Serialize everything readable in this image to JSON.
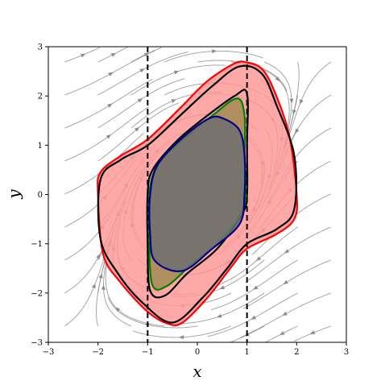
{
  "chart_data": {
    "type": "line",
    "title": "",
    "xlabel": "x",
    "ylabel": "y",
    "xlim": [
      -3,
      3
    ],
    "ylim": [
      -3,
      3
    ],
    "x_ticks": [
      "−3",
      "−2",
      "−1",
      "0",
      "1",
      "2",
      "3"
    ],
    "y_ticks": [
      "3",
      "2",
      "1",
      "0",
      "−1",
      "−2",
      "−3"
    ],
    "grid": false,
    "legend": "none",
    "vector_field": {
      "description": "streamlines",
      "color": "#8c8c8c"
    },
    "vertical_lines": [
      {
        "x": -1,
        "style": "dashed",
        "color": "#000000"
      },
      {
        "x": 1,
        "style": "dashed",
        "color": "#000000"
      }
    ],
    "series": [
      {
        "kind": "filled-curve",
        "fill": "#ff9999",
        "stroke": "#ff0000",
        "points": [
          [
            1.0,
            2.68
          ],
          [
            0.75,
            2.66
          ],
          [
            0.2,
            2.3
          ],
          [
            -0.35,
            1.75
          ],
          [
            -1.0,
            1.12
          ],
          [
            -1.55,
            0.78
          ],
          [
            -1.95,
            0.45
          ],
          [
            -2.0,
            0.0
          ],
          [
            -1.9,
            -1.2
          ],
          [
            -1.55,
            -1.78
          ],
          [
            -1.0,
            -2.38
          ],
          [
            -0.6,
            -2.62
          ],
          [
            -0.3,
            -2.6
          ],
          [
            0.2,
            -2.1
          ],
          [
            0.7,
            -1.45
          ],
          [
            1.0,
            -1.1
          ],
          [
            1.6,
            -0.8
          ],
          [
            1.95,
            -0.5
          ],
          [
            2.0,
            0.0
          ],
          [
            1.85,
            1.2
          ],
          [
            1.55,
            2.1
          ],
          [
            1.3,
            2.55
          ]
        ]
      },
      {
        "kind": "curve",
        "stroke": "#000000",
        "points": [
          [
            0.85,
            2.6
          ],
          [
            0.3,
            2.2
          ],
          [
            -0.35,
            1.6
          ],
          [
            -1.0,
            1.0
          ],
          [
            -1.55,
            0.7
          ],
          [
            -1.95,
            0.3
          ],
          [
            -1.95,
            -0.9
          ],
          [
            -1.6,
            -1.6
          ],
          [
            -1.1,
            -2.2
          ],
          [
            -0.5,
            -2.6
          ],
          [
            0.1,
            -2.1
          ],
          [
            0.6,
            -1.5
          ],
          [
            1.0,
            -1.0
          ],
          [
            1.6,
            -0.7
          ],
          [
            1.95,
            -0.3
          ],
          [
            1.95,
            0.8
          ],
          [
            1.6,
            1.8
          ],
          [
            1.3,
            2.45
          ]
        ]
      },
      {
        "kind": "curve",
        "stroke": "#000000",
        "points": [
          [
            1.0,
            2.05
          ],
          [
            0.75,
            2.0
          ],
          [
            0.2,
            1.6
          ],
          [
            -0.4,
            1.1
          ],
          [
            -0.9,
            0.5
          ],
          [
            -1.0,
            0.0
          ],
          [
            -1.0,
            -1.0
          ],
          [
            -0.95,
            -1.95
          ],
          [
            -0.65,
            -2.05
          ],
          [
            -0.2,
            -1.6
          ],
          [
            0.4,
            -1.1
          ],
          [
            0.9,
            -0.4
          ],
          [
            1.0,
            0.0
          ],
          [
            1.0,
            1.0
          ]
        ]
      },
      {
        "kind": "filled-curve",
        "fill": "#a28b52",
        "stroke": "#008000",
        "points": [
          [
            0.8,
            1.95
          ],
          [
            0.3,
            1.6
          ],
          [
            -0.3,
            1.1
          ],
          [
            -0.8,
            0.6
          ],
          [
            -0.97,
            0.0
          ],
          [
            -0.97,
            -1.0
          ],
          [
            -0.9,
            -1.85
          ],
          [
            -0.6,
            -1.85
          ],
          [
            -0.1,
            -1.4
          ],
          [
            0.5,
            -0.9
          ],
          [
            0.95,
            -0.2
          ],
          [
            0.95,
            0.8
          ],
          [
            0.95,
            1.6
          ]
        ]
      },
      {
        "kind": "filled-curve",
        "fill": "#6e6e6e",
        "stroke": "#00008b",
        "points": [
          [
            0.25,
            1.55
          ],
          [
            -0.3,
            1.15
          ],
          [
            -0.8,
            0.6
          ],
          [
            -0.95,
            0.0
          ],
          [
            -0.95,
            -0.8
          ],
          [
            -0.85,
            -1.35
          ],
          [
            -0.3,
            -1.55
          ],
          [
            0.3,
            -1.1
          ],
          [
            0.85,
            -0.6
          ],
          [
            0.95,
            0.0
          ],
          [
            0.95,
            0.8
          ],
          [
            0.85,
            1.3
          ],
          [
            0.55,
            1.53
          ]
        ]
      }
    ]
  }
}
